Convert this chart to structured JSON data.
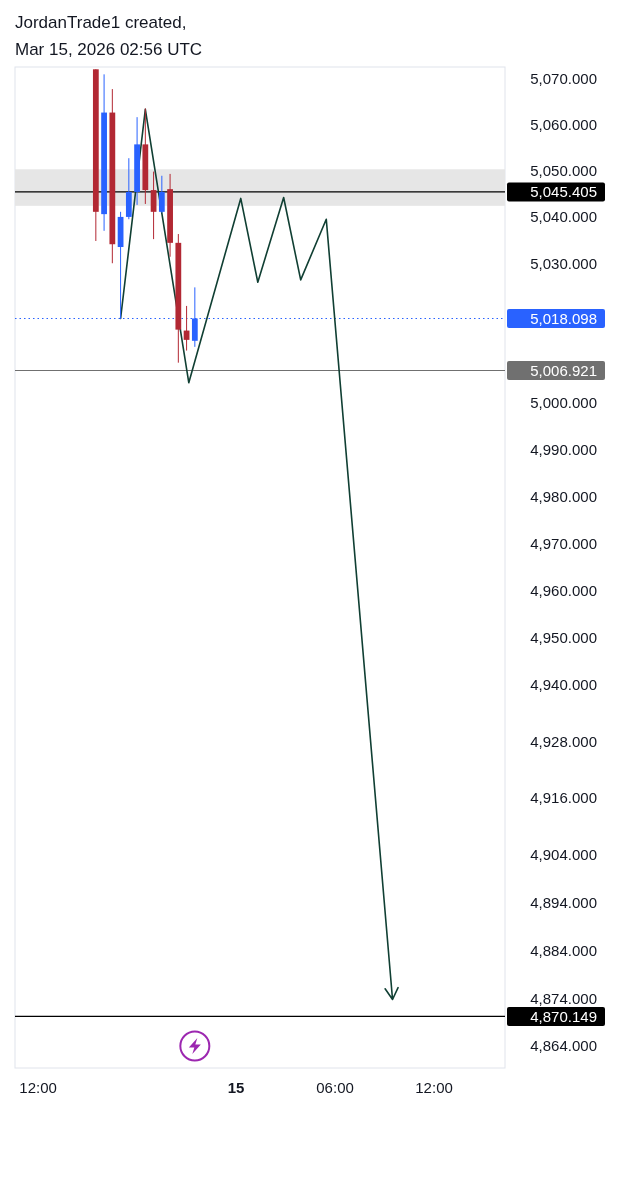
{
  "chart_data": {
    "type": "candlestick",
    "title": "JordanTrade1 created,",
    "subtitle": "Mar 15, 2026 02:56 UTC",
    "x": [
      "2026-03-14T15:30",
      "2026-03-14T16:00",
      "2026-03-14T16:30",
      "2026-03-14T17:00",
      "2026-03-14T17:30",
      "2026-03-14T18:00",
      "2026-03-14T18:30",
      "2026-03-14T19:00",
      "2026-03-14T19:30",
      "2026-03-14T20:00",
      "2026-03-14T20:30",
      "2026-03-14T21:00",
      "2026-03-14T21:30"
    ],
    "ohlc": [
      [
        5072.0,
        5072.0,
        5034.8,
        5041.1
      ],
      [
        5040.6,
        5070.9,
        5037.0,
        5062.6
      ],
      [
        5062.6,
        5067.7,
        5030.0,
        5034.1
      ],
      [
        5033.5,
        5041.1,
        5018.0,
        5040.0
      ],
      [
        5040.0,
        5052.7,
        5039.5,
        5045.4
      ],
      [
        5045.4,
        5061.6,
        5042.6,
        5055.7
      ],
      [
        5055.7,
        5063.5,
        5042.8,
        5045.8
      ],
      [
        5045.8,
        5049.8,
        5035.2,
        5041.1
      ],
      [
        5041.1,
        5048.9,
        5040.9,
        5045.4
      ],
      [
        5046.0,
        5049.3,
        5031.4,
        5034.4
      ],
      [
        5034.4,
        5036.3,
        5008.6,
        5015.7
      ],
      [
        5015.5,
        5020.8,
        5011.2,
        5013.5
      ],
      [
        5013.3,
        5024.8,
        5012.0,
        5018.1
      ]
    ],
    "colors": [
      "#b22833",
      "#2962ff",
      "#b22833",
      "#2962ff",
      "#2962ff",
      "#2962ff",
      "#b22833",
      "#b22833",
      "#2962ff",
      "#b22833",
      "#b22833",
      "#b22833",
      "#2962ff"
    ],
    "series": [
      {
        "type": "line",
        "color": "#103f33",
        "x": [
          "2026-03-14T17:00",
          "2026-03-14T18:30",
          "2026-03-14T21:08",
          "2026-03-15T00:17",
          "2026-03-15T01:19",
          "2026-03-15T02:53",
          "2026-03-15T03:55",
          "2026-03-15T05:28",
          "2026-03-15T09:29"
        ],
        "values": [
          5018.1,
          5063.3,
          5004.3,
          5044.0,
          5025.9,
          5044.2,
          5026.4,
          5039.5,
          4873.7
        ]
      }
    ],
    "xlim": [
      "2026-03-14T10:36",
      "2026-03-15T16:18"
    ],
    "xticks": [
      {
        "value": "2026-03-14T12:00",
        "label": "12:00"
      },
      {
        "value": "2026-03-15",
        "label": "15"
      },
      {
        "value": "2026-03-15T06:00",
        "label": "06:00"
      },
      {
        "value": "2026-03-15T12:00",
        "label": "12:00"
      }
    ],
    "ylim": [
      4859.4,
      5072.5
    ],
    "yticks": [
      {
        "value": 5070,
        "label": "5,070.000"
      },
      {
        "value": 5060,
        "label": "5,060.000"
      },
      {
        "value": 5050,
        "label": "5,050.000"
      },
      {
        "value": 5040,
        "label": "5,040.000"
      },
      {
        "value": 5030,
        "label": "5,030.000"
      },
      {
        "value": 5000,
        "label": "5,000.000"
      },
      {
        "value": 4990,
        "label": "4,990.000"
      },
      {
        "value": 4980,
        "label": "4,980.000"
      },
      {
        "value": 4970,
        "label": "4,970.000"
      },
      {
        "value": 4960,
        "label": "4,960.000"
      },
      {
        "value": 4950,
        "label": "4,950.000"
      },
      {
        "value": 4940,
        "label": "4,940.000"
      },
      {
        "value": 4928,
        "label": "4,928.000"
      },
      {
        "value": 4916,
        "label": "4,916.000"
      },
      {
        "value": 4904,
        "label": "4,904.000"
      },
      {
        "value": 4894,
        "label": "4,894.000"
      },
      {
        "value": 4884,
        "label": "4,884.000"
      },
      {
        "value": 4874,
        "label": "4,874.000"
      },
      {
        "value": 4864,
        "label": "4,864.000"
      }
    ],
    "log": true,
    "bands": [
      {
        "axis": "y",
        "from": 5042.4,
        "to": 5050.3,
        "color": "#e6e6e6"
      }
    ],
    "ref_lines": [
      {
        "axis": "y",
        "value": 5045.405,
        "label": "5,045.405",
        "color": "#000000",
        "line_style": "solid"
      },
      {
        "axis": "y",
        "value": 5018.098,
        "label": "5,018.098",
        "color": "#2962ff",
        "line_style": "dotted"
      },
      {
        "axis": "y",
        "value": 5006.921,
        "label": "5,006.921",
        "color": "#707070",
        "line_style": "solid"
      },
      {
        "axis": "y",
        "value": 4870.149,
        "label": "4,870.149",
        "color": "#000000",
        "line_style": "solid"
      }
    ]
  }
}
